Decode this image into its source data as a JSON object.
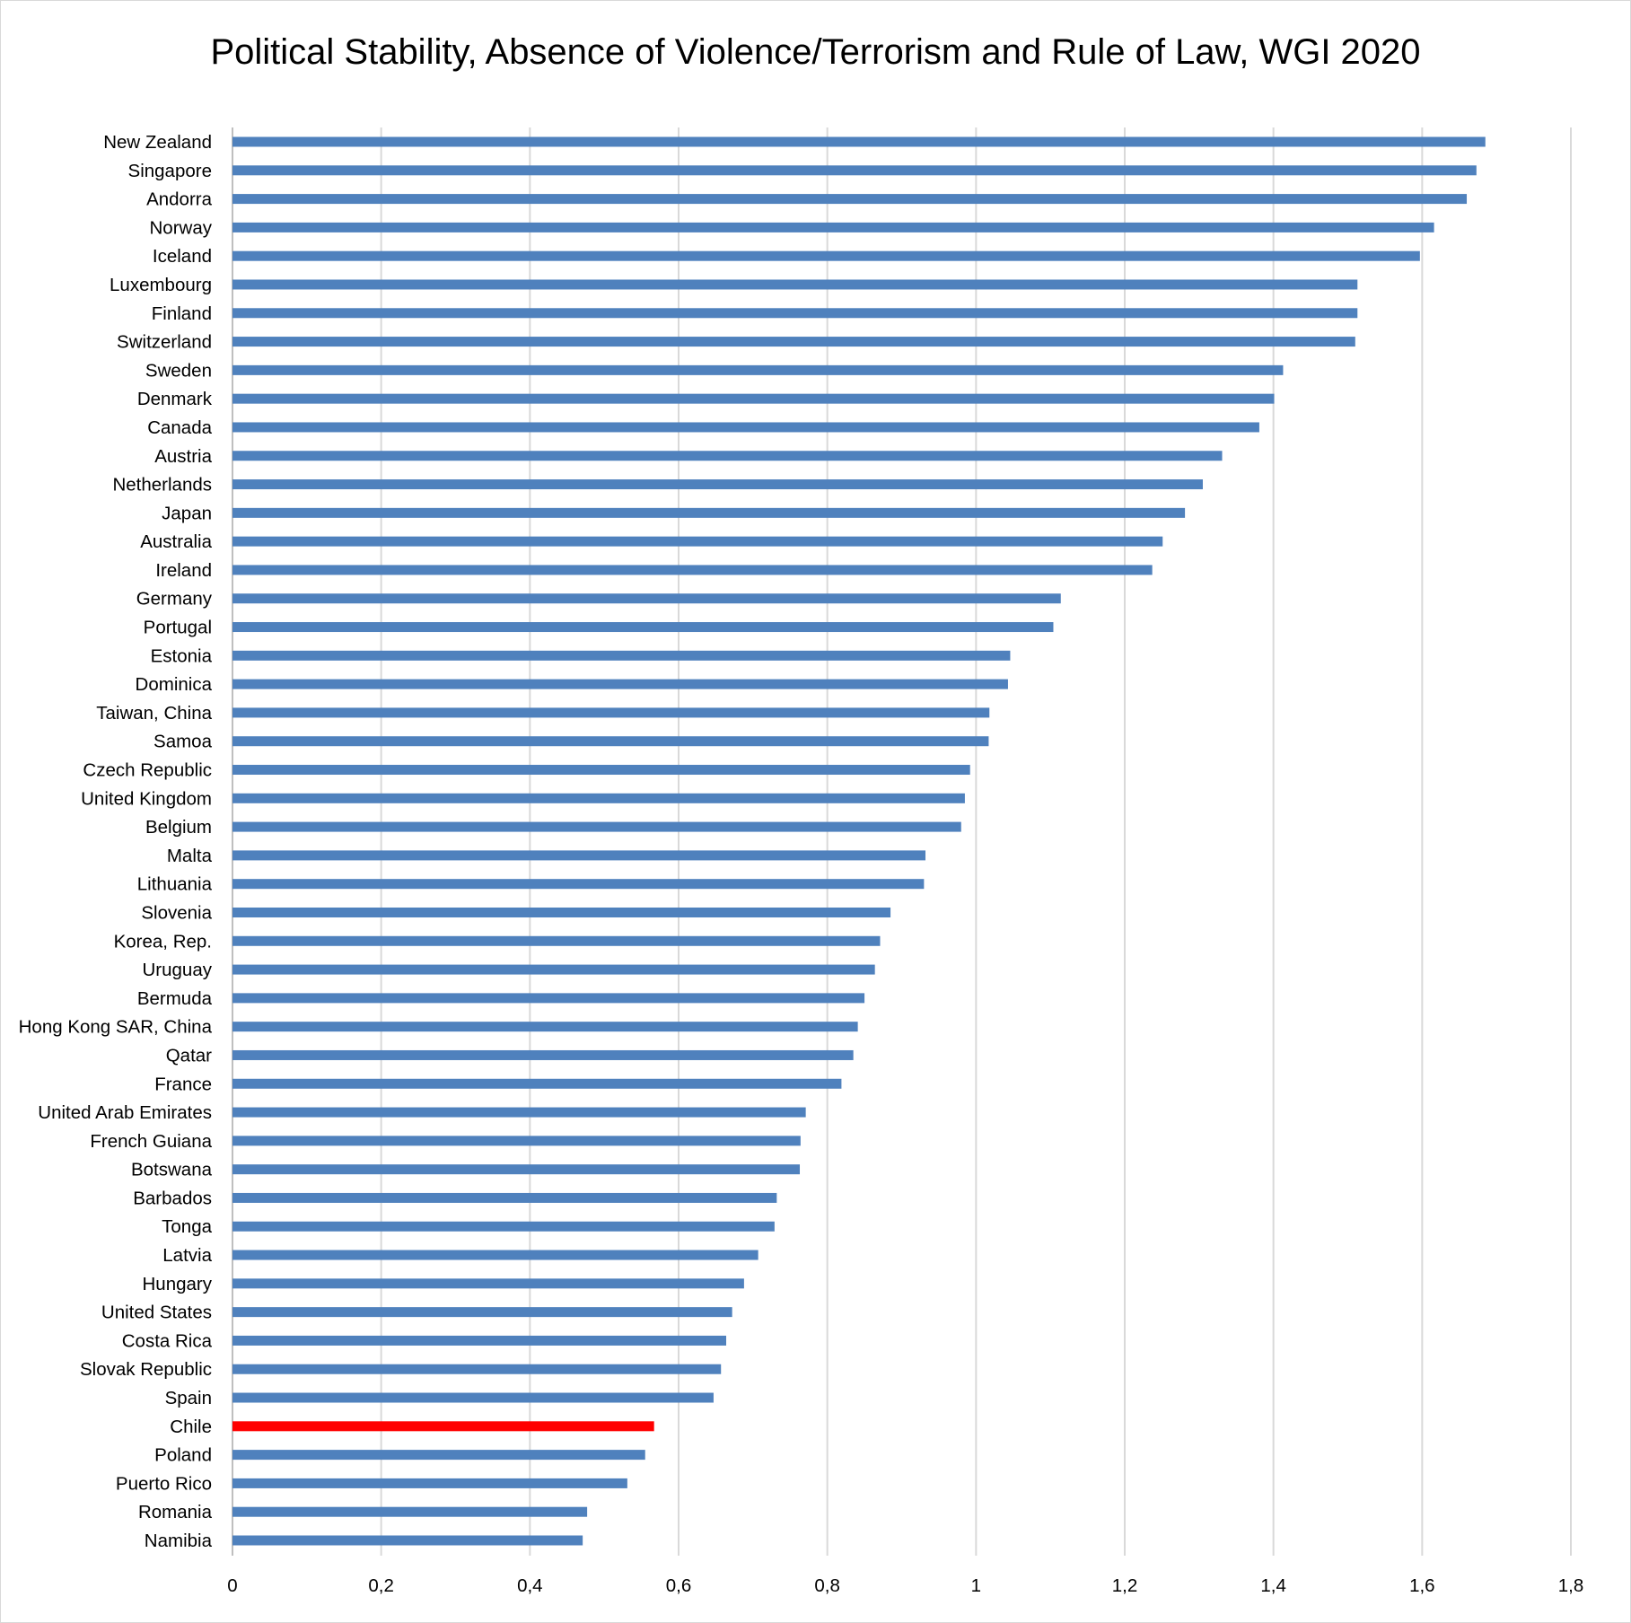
{
  "chart_data": {
    "type": "bar",
    "orientation": "horizontal",
    "title": "Political Stability, Absence of Violence/Terrorism and Rule of Law, WGI 2020",
    "xlabel": "",
    "ylabel": "",
    "xlim": [
      0,
      1.8
    ],
    "xticks": [
      "0",
      "0,2",
      "0,4",
      "0,6",
      "0,8",
      "1",
      "1,2",
      "1,4",
      "1,6",
      "1,8"
    ],
    "grid": true,
    "legend": "none",
    "colors": {
      "default": "#4f81bd",
      "highlight": "#ff0000",
      "grid": "#d9d9d9"
    },
    "highlight": "Chile",
    "categories": [
      "New Zealand",
      "Singapore",
      "Andorra",
      "Norway",
      "Iceland",
      "Luxembourg",
      "Finland",
      "Switzerland",
      "Sweden",
      "Denmark",
      "Canada",
      "Austria",
      "Netherlands",
      "Japan",
      "Australia",
      "Ireland",
      "Germany",
      "Portugal",
      "Estonia",
      "Dominica",
      "Taiwan, China",
      "Samoa",
      "Czech Republic",
      "United Kingdom",
      "Belgium",
      "Malta",
      "Lithuania",
      "Slovenia",
      "Korea, Rep.",
      "Uruguay",
      "Bermuda",
      "Hong Kong SAR, China",
      "Qatar",
      "France",
      "United Arab Emirates",
      "French Guiana",
      "Botswana",
      "Barbados",
      "Tonga",
      "Latvia",
      "Hungary",
      "United States",
      "Costa Rica",
      "Slovak Republic",
      "Spain",
      "Chile",
      "Poland",
      "Puerto Rico",
      "Romania",
      "Namibia"
    ],
    "values": [
      1.685,
      1.673,
      1.66,
      1.616,
      1.597,
      1.513,
      1.513,
      1.51,
      1.413,
      1.401,
      1.381,
      1.331,
      1.305,
      1.281,
      1.251,
      1.237,
      1.114,
      1.104,
      1.046,
      1.043,
      1.018,
      1.017,
      0.992,
      0.985,
      0.98,
      0.932,
      0.93,
      0.885,
      0.871,
      0.864,
      0.85,
      0.841,
      0.835,
      0.819,
      0.771,
      0.764,
      0.763,
      0.732,
      0.729,
      0.707,
      0.688,
      0.672,
      0.664,
      0.657,
      0.647,
      0.567,
      0.555,
      0.531,
      0.477,
      0.471
    ]
  }
}
